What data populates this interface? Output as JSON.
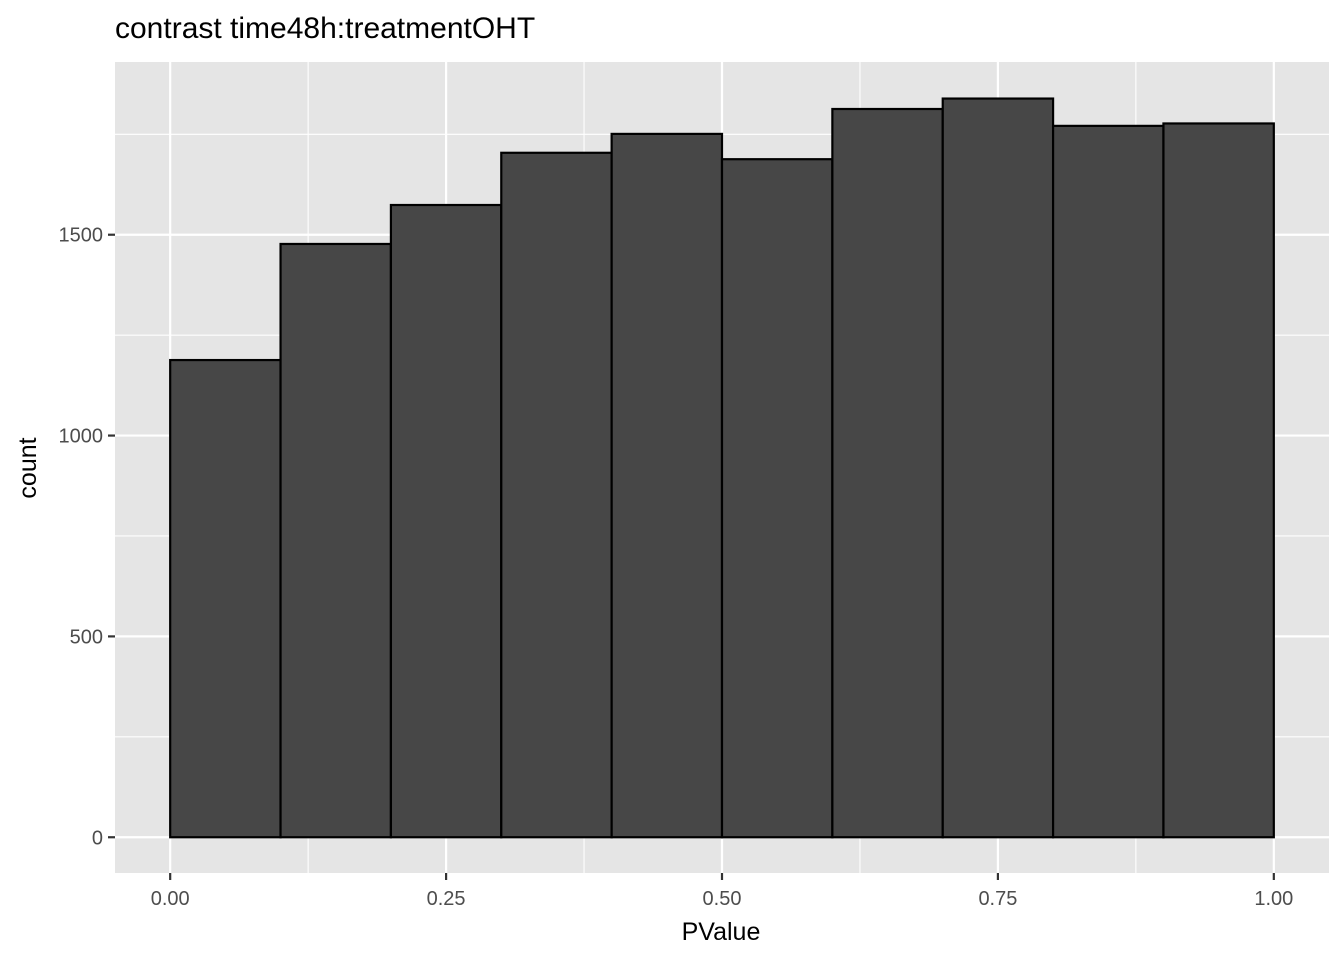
{
  "chart_data": {
    "type": "bar",
    "title": "contrast time48h:treatmentOHT",
    "xlabel": "PValue",
    "ylabel": "count",
    "bin_edges": [
      0.0,
      0.1,
      0.2,
      0.3,
      0.4,
      0.5,
      0.6,
      0.7,
      0.8,
      0.9,
      1.0
    ],
    "values": [
      1188,
      1477,
      1574,
      1704,
      1751,
      1688,
      1813,
      1839,
      1771,
      1777
    ],
    "xlim": [
      -0.05,
      1.05
    ],
    "ylim": [
      -89,
      1930
    ],
    "x_ticks": [
      0.0,
      0.25,
      0.5,
      0.75,
      1.0
    ],
    "x_tick_labels": [
      "0.00",
      "0.25",
      "0.50",
      "0.75",
      "1.00"
    ],
    "y_ticks": [
      0,
      500,
      1000,
      1500
    ],
    "y_tick_labels": [
      "0",
      "500",
      "1000",
      "1500"
    ],
    "grid": true,
    "colors": {
      "panel_background": "#e5e5e5",
      "grid_line": "#ffffff",
      "bar_fill": "#474747",
      "bar_outline": "#000000",
      "tick_mark": "#333333"
    }
  }
}
